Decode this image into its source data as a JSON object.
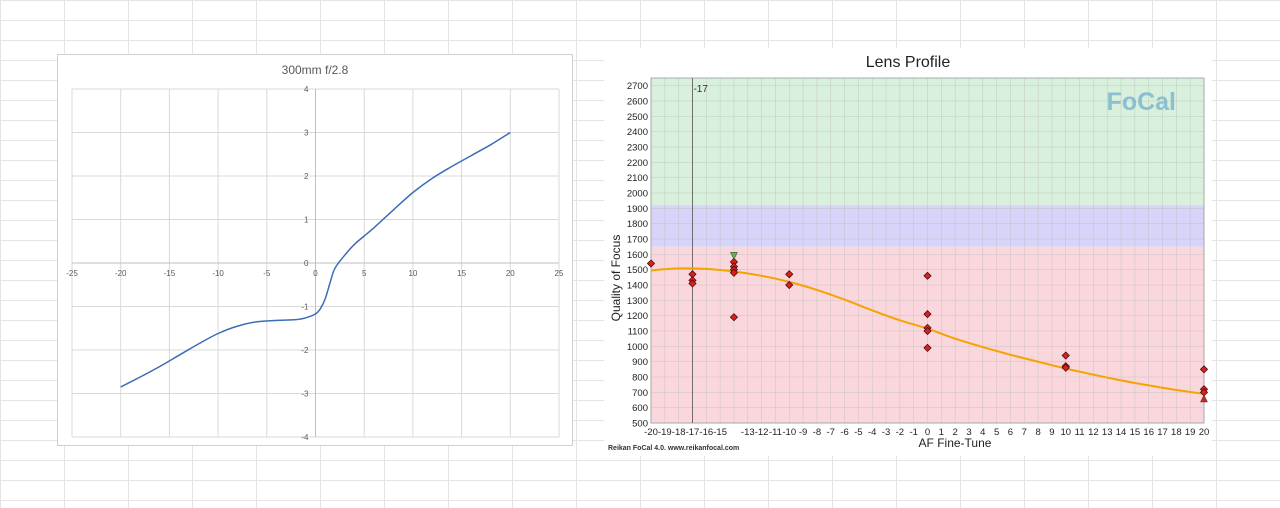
{
  "chart_data": [
    {
      "type": "line",
      "title": "300mm f/2.8",
      "xlim": [
        -25,
        25
      ],
      "ylim": [
        -4,
        4
      ],
      "xticks": [
        -25,
        -20,
        -15,
        -10,
        -5,
        0,
        5,
        10,
        15,
        20,
        25
      ],
      "yticks": [
        -4,
        -3,
        -2,
        -1,
        0,
        1,
        2,
        3,
        4
      ],
      "grid": true,
      "series": [
        {
          "color": "#3b6db5",
          "x": [
            -20,
            -18,
            -16,
            -14,
            -12,
            -10,
            -8,
            -6,
            -4,
            -2,
            -1,
            0,
            0.5,
            1,
            1.5,
            2,
            3,
            4,
            5,
            6,
            8,
            10,
            12,
            14,
            16,
            18,
            20
          ],
          "y": [
            -2.85,
            -2.62,
            -2.38,
            -2.12,
            -1.86,
            -1.62,
            -1.45,
            -1.35,
            -1.32,
            -1.3,
            -1.26,
            -1.17,
            -1.05,
            -0.82,
            -0.45,
            -0.12,
            0.18,
            0.43,
            0.62,
            0.81,
            1.22,
            1.62,
            1.95,
            2.22,
            2.47,
            2.72,
            3.0
          ]
        }
      ]
    },
    {
      "type": "scatter",
      "title": "Lens Profile",
      "xlabel": "AF Fine-Tune",
      "ylabel": "Quality of Focus",
      "xlim": [
        -20,
        20
      ],
      "ylim": [
        500,
        2700
      ],
      "xticks": [
        -20,
        -19,
        -18,
        -17,
        -16,
        -15,
        -13,
        -12,
        -11,
        -10,
        -9,
        -8,
        -7,
        -6,
        -5,
        -4,
        -3,
        -2,
        -1,
        0,
        1,
        2,
        3,
        4,
        5,
        6,
        7,
        8,
        9,
        10,
        11,
        12,
        13,
        14,
        15,
        16,
        17,
        18,
        19,
        20
      ],
      "yticks": [
        500,
        600,
        700,
        800,
        900,
        1000,
        1100,
        1200,
        1300,
        1400,
        1500,
        1600,
        1700,
        1800,
        1900,
        2000,
        2100,
        2200,
        2300,
        2400,
        2500,
        2600,
        2700
      ],
      "grid": true,
      "bands": [
        {
          "from": 1920,
          "to": 2750,
          "color": "#d9f0dc"
        },
        {
          "from": 1650,
          "to": 1920,
          "color": "#d6d4f8"
        },
        {
          "from": 500,
          "to": 1650,
          "color": "#f9d7dc"
        }
      ],
      "marker_line": {
        "x": -17,
        "label": "-17"
      },
      "points": {
        "color": "#d91f1f",
        "x": [
          -20,
          -17,
          -17,
          -17,
          -14,
          -14,
          -14,
          -14,
          -14,
          -10,
          -10,
          0,
          0,
          0,
          0,
          0,
          10,
          10,
          10,
          20,
          20,
          20
        ],
        "y": [
          1540,
          1470,
          1430,
          1410,
          1550,
          1520,
          1500,
          1480,
          1190,
          1470,
          1400,
          1460,
          1210,
          1120,
          1100,
          990,
          940,
          870,
          860,
          850,
          720,
          700
        ]
      },
      "extra_markers": [
        {
          "x": -14,
          "y": 1590,
          "shape": "triangle-down",
          "color": "#5fb34a"
        },
        {
          "x": 20,
          "y": 660,
          "shape": "triangle-up",
          "color": "#d91f1f"
        }
      ],
      "fit": {
        "color": "#f5a300",
        "x": [
          -20,
          -18,
          -16,
          -14,
          -12,
          -10,
          -8,
          -6,
          -4,
          -2,
          0,
          2,
          4,
          6,
          8,
          10,
          12,
          14,
          16,
          18,
          20
        ],
        "y": [
          1495,
          1508,
          1505,
          1488,
          1460,
          1420,
          1368,
          1305,
          1235,
          1170,
          1115,
          1050,
          995,
          945,
          900,
          855,
          815,
          778,
          745,
          715,
          690
        ]
      },
      "logo": "FoCal",
      "footer": "Reikan FoCal 4.0. www.reikanfocal.com"
    }
  ]
}
